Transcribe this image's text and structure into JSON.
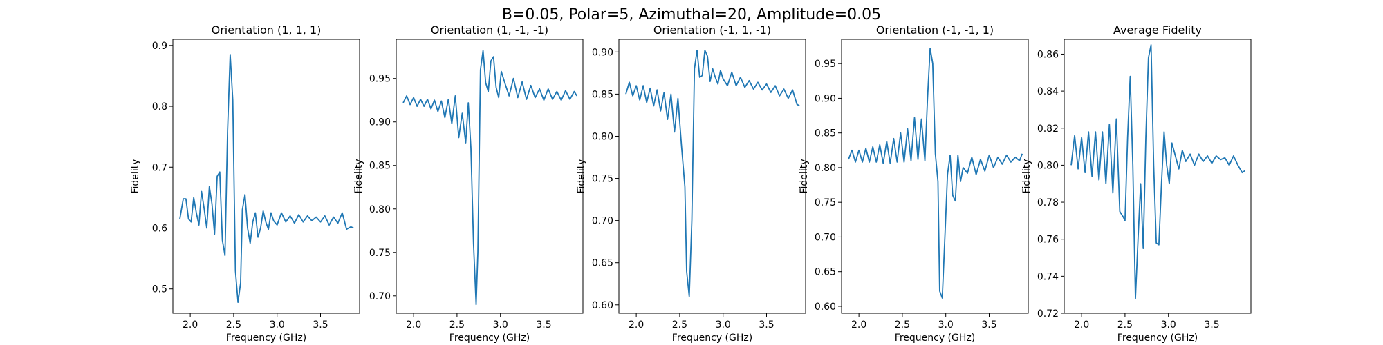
{
  "figure": {
    "suptitle": "B=0.05, Polar=5, Azimuthal=20, Amplitude=0.05"
  },
  "colors": {
    "series": "#1f77b4",
    "axes": "#000000",
    "background": "#ffffff"
  },
  "chart_data": [
    {
      "type": "line",
      "title": "Orientation (1, 1, 1)",
      "xlabel": "Frequency (GHz)",
      "ylabel": "Fidelity",
      "xlim": [
        1.8,
        3.95
      ],
      "ylim": [
        0.46,
        0.91
      ],
      "xticks": [
        2.0,
        2.5,
        3.0,
        3.5
      ],
      "xtick_labels": [
        "2.0",
        "2.5",
        "3.0",
        "3.5"
      ],
      "yticks": [
        0.5,
        0.6,
        0.7,
        0.8,
        0.9
      ],
      "ytick_labels": [
        "0.5",
        "0.6",
        "0.7",
        "0.8",
        "0.9"
      ],
      "grid": false,
      "series": [
        {
          "x": [
            1.88,
            1.92,
            1.95,
            1.98,
            2.01,
            2.04,
            2.07,
            2.1,
            2.13,
            2.16,
            2.19,
            2.22,
            2.25,
            2.28,
            2.31,
            2.34,
            2.37,
            2.4,
            2.43,
            2.46,
            2.49,
            2.52,
            2.55,
            2.58,
            2.6,
            2.63,
            2.66,
            2.69,
            2.72,
            2.75,
            2.78,
            2.81,
            2.84,
            2.87,
            2.9,
            2.93,
            2.96,
            3.0,
            3.05,
            3.1,
            3.15,
            3.2,
            3.25,
            3.3,
            3.35,
            3.4,
            3.45,
            3.5,
            3.55,
            3.6,
            3.65,
            3.7,
            3.75,
            3.8,
            3.85,
            3.88
          ],
          "y": [
            0.615,
            0.648,
            0.648,
            0.615,
            0.61,
            0.65,
            0.625,
            0.605,
            0.66,
            0.632,
            0.6,
            0.668,
            0.64,
            0.59,
            0.685,
            0.692,
            0.58,
            0.555,
            0.76,
            0.885,
            0.81,
            0.53,
            0.478,
            0.51,
            0.63,
            0.655,
            0.6,
            0.575,
            0.61,
            0.625,
            0.585,
            0.6,
            0.628,
            0.61,
            0.598,
            0.625,
            0.612,
            0.605,
            0.625,
            0.61,
            0.62,
            0.608,
            0.622,
            0.61,
            0.62,
            0.612,
            0.618,
            0.61,
            0.62,
            0.605,
            0.618,
            0.608,
            0.625,
            0.598,
            0.602,
            0.6
          ]
        }
      ]
    },
    {
      "type": "line",
      "title": "Orientation (1, -1, -1)",
      "xlabel": "Frequency (GHz)",
      "ylabel": "Fidelity",
      "xlim": [
        1.8,
        3.95
      ],
      "ylim": [
        0.68,
        0.995
      ],
      "xticks": [
        2.0,
        2.5,
        3.0,
        3.5
      ],
      "xtick_labels": [
        "2.0",
        "2.5",
        "3.0",
        "3.5"
      ],
      "yticks": [
        0.7,
        0.75,
        0.8,
        0.85,
        0.9,
        0.95
      ],
      "ytick_labels": [
        "0.70",
        "0.75",
        "0.80",
        "0.85",
        "0.90",
        "0.95"
      ],
      "grid": false,
      "series": [
        {
          "x": [
            1.88,
            1.92,
            1.96,
            2.0,
            2.04,
            2.08,
            2.12,
            2.16,
            2.2,
            2.24,
            2.28,
            2.32,
            2.36,
            2.4,
            2.44,
            2.48,
            2.52,
            2.56,
            2.6,
            2.63,
            2.66,
            2.69,
            2.72,
            2.74,
            2.77,
            2.8,
            2.83,
            2.86,
            2.89,
            2.92,
            2.95,
            2.98,
            3.01,
            3.05,
            3.1,
            3.15,
            3.2,
            3.25,
            3.3,
            3.35,
            3.4,
            3.45,
            3.5,
            3.55,
            3.6,
            3.65,
            3.7,
            3.75,
            3.8,
            3.85,
            3.88
          ],
          "y": [
            0.922,
            0.93,
            0.92,
            0.928,
            0.918,
            0.926,
            0.918,
            0.926,
            0.915,
            0.925,
            0.912,
            0.924,
            0.905,
            0.926,
            0.898,
            0.93,
            0.882,
            0.91,
            0.876,
            0.922,
            0.87,
            0.76,
            0.69,
            0.75,
            0.96,
            0.982,
            0.945,
            0.935,
            0.97,
            0.975,
            0.94,
            0.928,
            0.958,
            0.945,
            0.93,
            0.95,
            0.928,
            0.946,
            0.926,
            0.942,
            0.928,
            0.938,
            0.925,
            0.938,
            0.926,
            0.935,
            0.925,
            0.936,
            0.926,
            0.935,
            0.93
          ]
        }
      ]
    },
    {
      "type": "line",
      "title": "Orientation (-1, 1, -1)",
      "xlabel": "Frequency (GHz)",
      "ylabel": "Fidelity",
      "xlim": [
        1.8,
        3.95
      ],
      "ylim": [
        0.59,
        0.915
      ],
      "xticks": [
        2.0,
        2.5,
        3.0,
        3.5
      ],
      "xtick_labels": [
        "2.0",
        "2.5",
        "3.0",
        "3.5"
      ],
      "yticks": [
        0.6,
        0.65,
        0.7,
        0.75,
        0.8,
        0.85,
        0.9
      ],
      "ytick_labels": [
        "0.60",
        "0.65",
        "0.70",
        "0.75",
        "0.80",
        "0.85",
        "0.90"
      ],
      "grid": false,
      "series": [
        {
          "x": [
            1.88,
            1.92,
            1.96,
            2.0,
            2.04,
            2.08,
            2.12,
            2.16,
            2.2,
            2.24,
            2.28,
            2.32,
            2.36,
            2.4,
            2.44,
            2.48,
            2.52,
            2.56,
            2.58,
            2.61,
            2.64,
            2.67,
            2.7,
            2.73,
            2.76,
            2.79,
            2.82,
            2.85,
            2.88,
            2.91,
            2.94,
            2.97,
            3.0,
            3.05,
            3.1,
            3.15,
            3.2,
            3.25,
            3.3,
            3.35,
            3.4,
            3.45,
            3.5,
            3.55,
            3.6,
            3.65,
            3.7,
            3.75,
            3.8,
            3.85,
            3.88
          ],
          "y": [
            0.85,
            0.864,
            0.848,
            0.86,
            0.843,
            0.86,
            0.84,
            0.857,
            0.836,
            0.855,
            0.83,
            0.852,
            0.82,
            0.85,
            0.805,
            0.845,
            0.79,
            0.74,
            0.64,
            0.61,
            0.7,
            0.88,
            0.902,
            0.87,
            0.872,
            0.902,
            0.895,
            0.865,
            0.88,
            0.87,
            0.862,
            0.878,
            0.868,
            0.86,
            0.876,
            0.86,
            0.87,
            0.858,
            0.866,
            0.856,
            0.864,
            0.855,
            0.862,
            0.852,
            0.86,
            0.848,
            0.856,
            0.845,
            0.855,
            0.838,
            0.836
          ]
        }
      ]
    },
    {
      "type": "line",
      "title": "Orientation (-1, -1, 1)",
      "xlabel": "Frequency (GHz)",
      "ylabel": "Fidelity",
      "xlim": [
        1.8,
        3.95
      ],
      "ylim": [
        0.59,
        0.985
      ],
      "xticks": [
        2.0,
        2.5,
        3.0,
        3.5
      ],
      "xtick_labels": [
        "2.0",
        "2.5",
        "3.0",
        "3.5"
      ],
      "yticks": [
        0.6,
        0.65,
        0.7,
        0.75,
        0.8,
        0.85,
        0.9,
        0.95
      ],
      "ytick_labels": [
        "0.60",
        "0.65",
        "0.70",
        "0.75",
        "0.80",
        "0.85",
        "0.90",
        "0.95"
      ],
      "grid": false,
      "series": [
        {
          "x": [
            1.88,
            1.92,
            1.96,
            2.0,
            2.04,
            2.08,
            2.12,
            2.16,
            2.2,
            2.24,
            2.28,
            2.32,
            2.36,
            2.4,
            2.44,
            2.48,
            2.52,
            2.56,
            2.6,
            2.64,
            2.68,
            2.72,
            2.76,
            2.79,
            2.82,
            2.85,
            2.88,
            2.91,
            2.93,
            2.96,
            2.99,
            3.02,
            3.05,
            3.08,
            3.11,
            3.14,
            3.17,
            3.2,
            3.25,
            3.3,
            3.35,
            3.4,
            3.45,
            3.5,
            3.55,
            3.6,
            3.65,
            3.7,
            3.75,
            3.8,
            3.85,
            3.88
          ],
          "y": [
            0.812,
            0.825,
            0.808,
            0.825,
            0.808,
            0.828,
            0.808,
            0.83,
            0.808,
            0.833,
            0.806,
            0.838,
            0.806,
            0.842,
            0.808,
            0.85,
            0.808,
            0.856,
            0.81,
            0.872,
            0.812,
            0.87,
            0.81,
            0.9,
            0.972,
            0.95,
            0.82,
            0.78,
            0.622,
            0.612,
            0.7,
            0.79,
            0.818,
            0.76,
            0.752,
            0.818,
            0.78,
            0.8,
            0.792,
            0.815,
            0.79,
            0.812,
            0.795,
            0.818,
            0.8,
            0.815,
            0.805,
            0.818,
            0.808,
            0.815,
            0.81,
            0.82
          ]
        }
      ]
    },
    {
      "type": "line",
      "title": "Average Fidelity",
      "xlabel": "Frequency (GHz)",
      "ylabel": "Fidelity",
      "xlim": [
        1.8,
        3.95
      ],
      "ylim": [
        0.72,
        0.868
      ],
      "xticks": [
        2.0,
        2.5,
        3.0,
        3.5
      ],
      "xtick_labels": [
        "2.0",
        "2.5",
        "3.0",
        "3.5"
      ],
      "yticks": [
        0.72,
        0.74,
        0.76,
        0.78,
        0.8,
        0.82,
        0.84,
        0.86
      ],
      "ytick_labels": [
        "0.72",
        "0.74",
        "0.76",
        "0.78",
        "0.80",
        "0.82",
        "0.84",
        "0.86"
      ],
      "grid": false,
      "series": [
        {
          "x": [
            1.88,
            1.92,
            1.96,
            2.0,
            2.04,
            2.08,
            2.12,
            2.16,
            2.2,
            2.24,
            2.28,
            2.32,
            2.36,
            2.4,
            2.44,
            2.48,
            2.5,
            2.53,
            2.56,
            2.59,
            2.62,
            2.65,
            2.68,
            2.71,
            2.74,
            2.77,
            2.8,
            2.83,
            2.86,
            2.89,
            2.92,
            2.95,
            2.98,
            3.01,
            3.04,
            3.08,
            3.12,
            3.16,
            3.2,
            3.25,
            3.3,
            3.35,
            3.4,
            3.45,
            3.5,
            3.55,
            3.6,
            3.65,
            3.7,
            3.75,
            3.8,
            3.85,
            3.88
          ],
          "y": [
            0.8,
            0.816,
            0.798,
            0.815,
            0.796,
            0.818,
            0.794,
            0.818,
            0.792,
            0.818,
            0.79,
            0.822,
            0.785,
            0.825,
            0.775,
            0.772,
            0.77,
            0.815,
            0.848,
            0.8,
            0.728,
            0.76,
            0.79,
            0.755,
            0.815,
            0.858,
            0.865,
            0.8,
            0.758,
            0.757,
            0.79,
            0.818,
            0.8,
            0.79,
            0.812,
            0.805,
            0.798,
            0.808,
            0.802,
            0.806,
            0.8,
            0.806,
            0.802,
            0.805,
            0.801,
            0.805,
            0.803,
            0.804,
            0.8,
            0.805,
            0.8,
            0.796,
            0.797
          ]
        }
      ]
    }
  ]
}
